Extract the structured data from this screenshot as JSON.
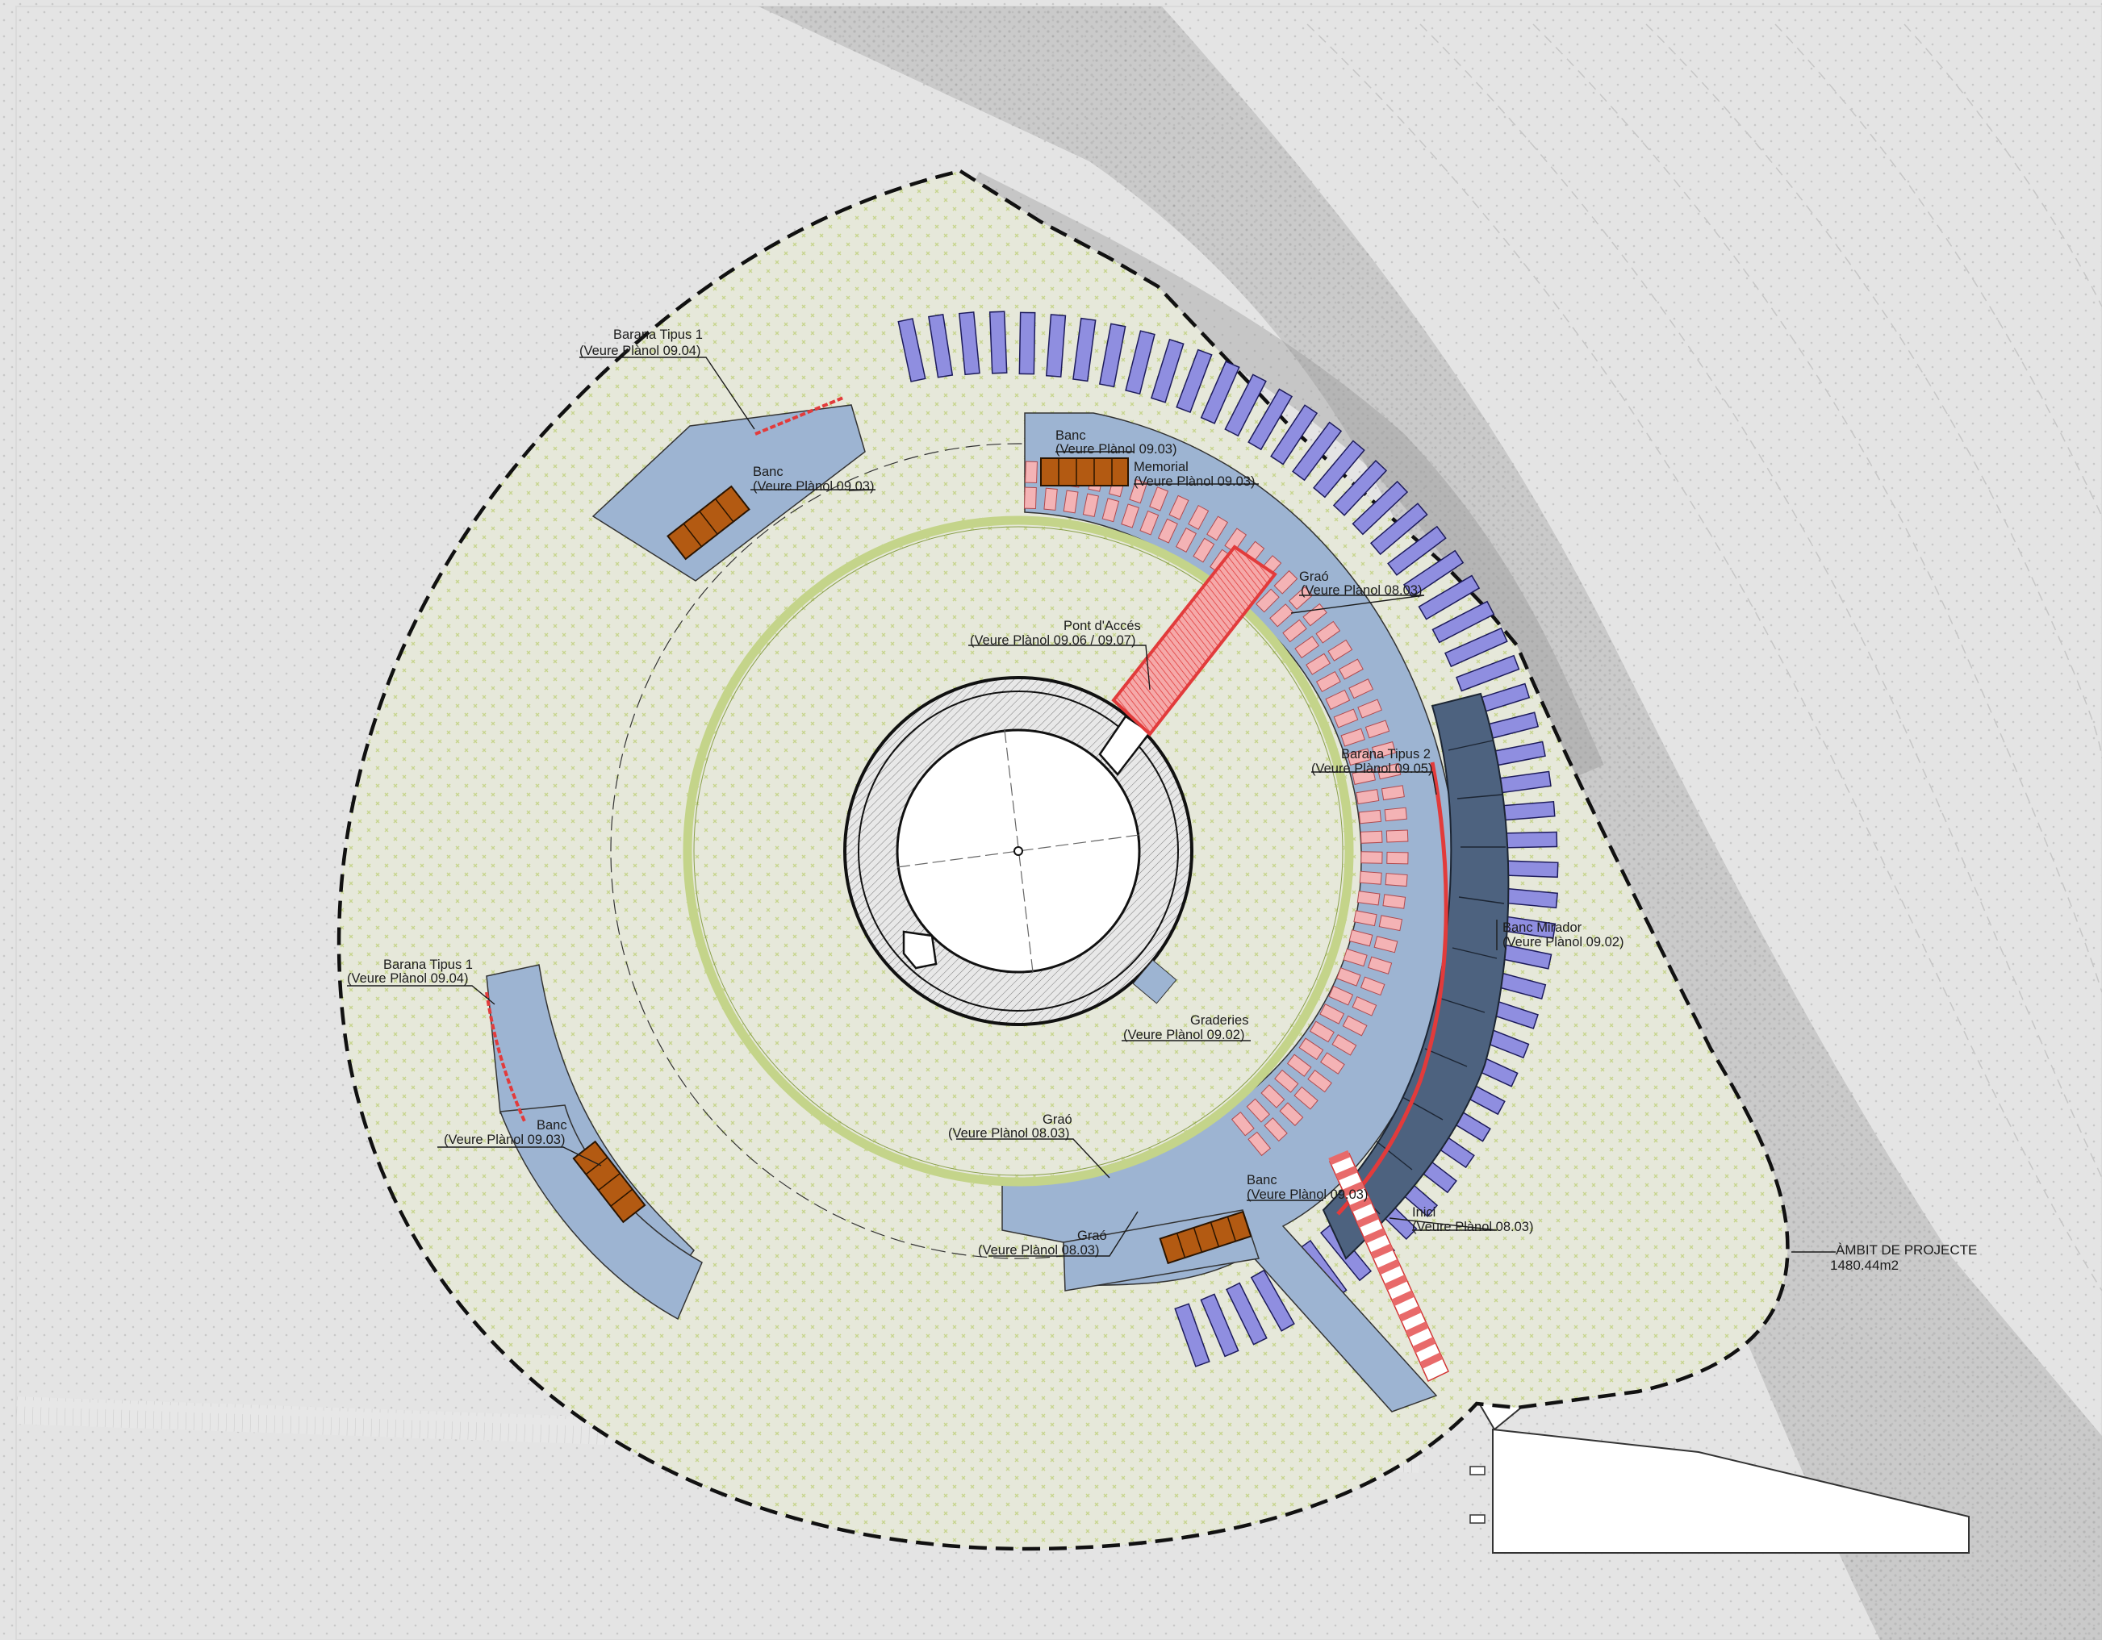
{
  "colors": {
    "background": "#ececec",
    "terrain": "#dcdcdc",
    "cliff": "#a9a9a9",
    "site_fill": "#e6e8da",
    "pale_blue": "#9db4d2",
    "lavender": "#8f8ee0",
    "pink": "#f4b3b5",
    "red": "#e23b3b",
    "brown": "#b35a12",
    "dark_blue": "#4d627f",
    "green_ring": "#c4d48a",
    "boundary": "#111111"
  },
  "labels": {
    "barana_tipus_1_top": {
      "title": "Barana Tipus 1",
      "ref": "(Veure Plànol 09.04)"
    },
    "banc_top_left": {
      "title": "Banc",
      "ref": "(Veure Plànol 09.03)"
    },
    "banc_top": {
      "title": "Banc",
      "ref": "(Veure Plànol 09.03)"
    },
    "memorial": {
      "title": "Memorial",
      "ref": "(Veure Plànol 09.03)"
    },
    "grao_top": {
      "title": "Graó",
      "ref": "(Veure Plànol 08.03)"
    },
    "pont_acces": {
      "title": "Pont d'Accés",
      "ref": "(Veure Plànol 09.06 / 09.07)"
    },
    "barana_tipus_2": {
      "title": "Barana Tipus 2",
      "ref": "(Veure Plànol 09.05)"
    },
    "banc_mirador": {
      "title": "Banc Mirador",
      "ref": "(Veure Plànol 09.02)"
    },
    "barana_tipus_1_left": {
      "title": "Barana Tipus 1",
      "ref": "(Veure Plànol 09.04)"
    },
    "graderies": {
      "title": "Graderies",
      "ref": "(Veure Plànol 09.02)"
    },
    "grao_mid": {
      "title": "Graó",
      "ref": "(Veure Plànol 08.03)"
    },
    "banc_left": {
      "title": "Banc",
      "ref": "(Veure Plànol 09.03)"
    },
    "banc_bottom": {
      "title": "Banc",
      "ref": "(Veure Plànol 09.03)"
    },
    "grao_bottom": {
      "title": "Graó",
      "ref": "(Veure Plànol 08.03)"
    },
    "inici": {
      "title": "Inici",
      "ref": "(Veure Plànol 08.03)"
    },
    "ambit": {
      "title": "ÀMBIT DE PROJECTE",
      "ref": "1480.44m2"
    }
  }
}
